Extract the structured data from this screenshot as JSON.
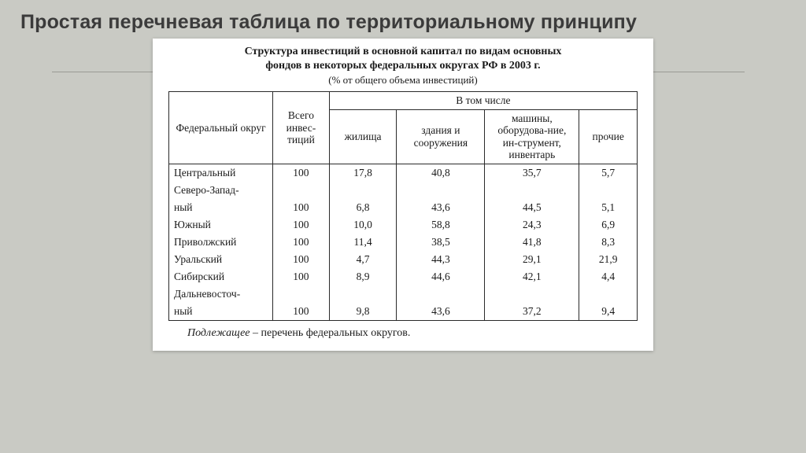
{
  "slide": {
    "title": "Простая перечневая таблица по территориальному принципу",
    "colors": {
      "slide_bg": "#c9cac4",
      "panel_bg": "#ffffff",
      "ink": "#1a1a1a",
      "title_color": "#3b3b3b",
      "rule": "#9a9a94"
    }
  },
  "caption": {
    "line1": "Структура инвестиций в основной капитал по видам основных",
    "line2": "фондов в некоторых федеральных округах РФ в 2003 г.",
    "sub": "(% от общего объема инвестиций)"
  },
  "table": {
    "type": "table",
    "head": {
      "col_region": "Федеральный округ",
      "col_total": "Всего инвес-тиций",
      "group": "В том числе",
      "c1": "жилища",
      "c2": "здания и сооружения",
      "c3": "машины, оборудова-ние, ин-струмент, инвентарь",
      "c4": "прочие"
    },
    "rows": [
      {
        "name": "Центральный",
        "total": "100",
        "c1": "17,8",
        "c2": "40,8",
        "c3": "35,7",
        "c4": "5,7"
      },
      {
        "name": "Северо-Запад-ный",
        "total": "100",
        "c1": "6,8",
        "c2": "43,6",
        "c3": "44,5",
        "c4": "5,1"
      },
      {
        "name": "Южный",
        "total": "100",
        "c1": "10,0",
        "c2": "58,8",
        "c3": "24,3",
        "c4": "6,9"
      },
      {
        "name": "Приволжский",
        "total": "100",
        "c1": "11,4",
        "c2": "38,5",
        "c3": "41,8",
        "c4": "8,3"
      },
      {
        "name": "Уральский",
        "total": "100",
        "c1": "4,7",
        "c2": "44,3",
        "c3": "29,1",
        "c4": "21,9"
      },
      {
        "name": "Сибирский",
        "total": "100",
        "c1": "8,9",
        "c2": "44,6",
        "c3": "42,1",
        "c4": "4,4"
      },
      {
        "name": "Дальневосточ-ный",
        "total": "100",
        "c1": "9,8",
        "c2": "43,6",
        "c3": "37,2",
        "c4": "9,4"
      }
    ]
  },
  "footnote": {
    "term": "Подлежащее",
    "rest": " – перечень федеральных округов."
  }
}
